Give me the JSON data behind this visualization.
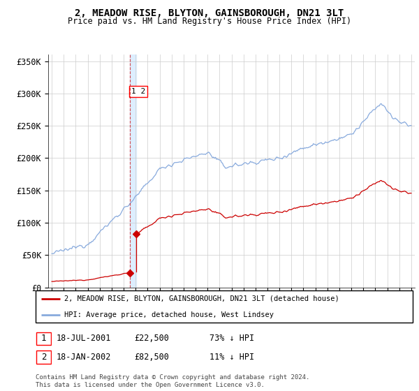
{
  "title": "2, MEADOW RISE, BLYTON, GAINSBOROUGH, DN21 3LT",
  "subtitle": "Price paid vs. HM Land Registry's House Price Index (HPI)",
  "ylim": [
    0,
    360000
  ],
  "yticks": [
    0,
    50000,
    100000,
    150000,
    200000,
    250000,
    300000,
    350000
  ],
  "ytick_labels": [
    "£0",
    "£50K",
    "£100K",
    "£150K",
    "£200K",
    "£250K",
    "£300K",
    "£350K"
  ],
  "sale1_year": 2001.54,
  "sale1_price": 22500,
  "sale2_year": 2002.04,
  "sale2_price": 82500,
  "legend_entries": [
    "2, MEADOW RISE, BLYTON, GAINSBOROUGH, DN21 3LT (detached house)",
    "HPI: Average price, detached house, West Lindsey"
  ],
  "table_rows": [
    [
      "1",
      "18-JUL-2001",
      "£22,500",
      "73% ↓ HPI"
    ],
    [
      "2",
      "18-JAN-2002",
      "£82,500",
      "11% ↓ HPI"
    ]
  ],
  "footer": "Contains HM Land Registry data © Crown copyright and database right 2024.\nThis data is licensed under the Open Government Licence v3.0.",
  "line_color_red": "#cc0000",
  "line_color_blue": "#88aadd",
  "vline_color": "#cc0000",
  "vband_color": "#ddeeff",
  "background_color": "#ffffff",
  "grid_color": "#cccccc"
}
